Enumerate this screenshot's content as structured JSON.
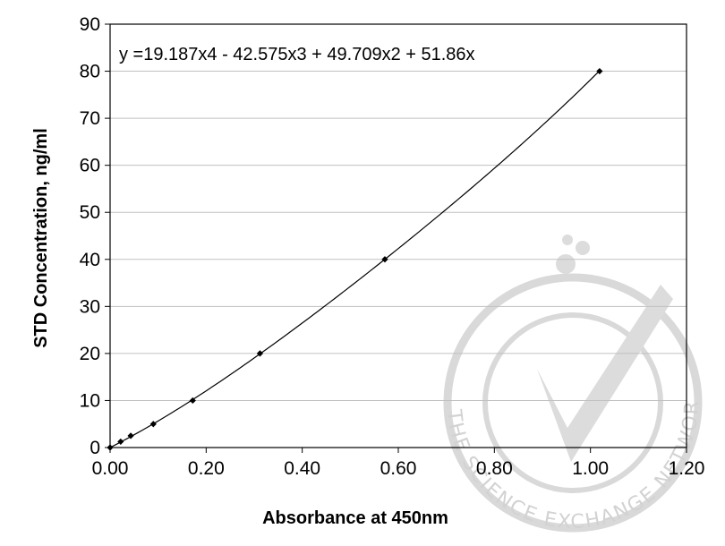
{
  "chart_data": {
    "type": "scatter",
    "title": "",
    "xlabel": "Absorbance at 450nm",
    "ylabel": "STD Concentration, ng/ml",
    "xlim": [
      0,
      1.2
    ],
    "ylim": [
      0,
      90
    ],
    "x_ticks": [
      "0.00",
      "0.20",
      "0.40",
      "0.60",
      "0.80",
      "1.00",
      "1.20"
    ],
    "y_ticks": [
      "0",
      "10",
      "20",
      "30",
      "40",
      "50",
      "60",
      "70",
      "80",
      "90"
    ],
    "grid": "horizontal",
    "trendline": {
      "type": "polynomial",
      "equation": "y =19.187x4 - 42.575x3 + 49.709x2 + 51.86x",
      "coefficients": [
        51.86,
        49.709,
        -42.575,
        19.187
      ]
    },
    "series": [
      {
        "points": [
          {
            "x": 0.0,
            "y": 0
          },
          {
            "x": 0.022,
            "y": 1.25
          },
          {
            "x": 0.043,
            "y": 2.5
          },
          {
            "x": 0.09,
            "y": 5
          },
          {
            "x": 0.172,
            "y": 10
          },
          {
            "x": 0.312,
            "y": 20
          },
          {
            "x": 0.572,
            "y": 40
          },
          {
            "x": 1.019,
            "y": 80
          }
        ]
      }
    ]
  },
  "watermark": {
    "text": "THE SCIENCE EXCHANGE NETWORK",
    "icon": "checkmark-seal-icon",
    "color": "#d2d2d2"
  }
}
